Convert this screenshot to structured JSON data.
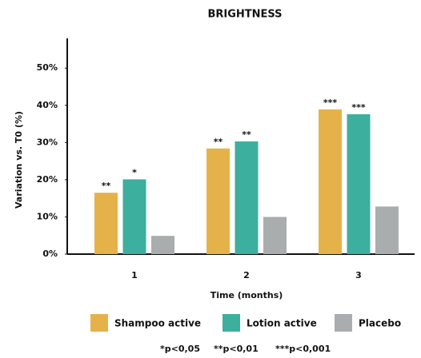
{
  "chart_data": {
    "type": "bar",
    "title": "BRIGHTNESS",
    "x_label": "Time (months)",
    "y_label": "Variation vs. T0 (%)",
    "categories": [
      "1",
      "2",
      "3"
    ],
    "series": [
      {
        "name": "Shampoo active",
        "color": "#e5b24a",
        "values": [
          16.5,
          28.4,
          38.9
        ],
        "annotations": [
          "**",
          "**",
          "***"
        ]
      },
      {
        "name": "Lotion active",
        "color": "#3daf9e",
        "values": [
          20.1,
          30.3,
          37.6
        ],
        "annotations": [
          "*",
          "**",
          "***"
        ]
      },
      {
        "name": "Placebo",
        "color": "#a9adad",
        "values": [
          4.9,
          10.0,
          12.8
        ]
      }
    ],
    "ylim": [
      0,
      58
    ],
    "yticks": [
      {
        "value": 0,
        "label": "0%"
      },
      {
        "value": 10,
        "label": "10%"
      },
      {
        "value": 20,
        "label": "20%"
      },
      {
        "value": 30,
        "label": "30%"
      },
      {
        "value": 40,
        "label": "40%"
      },
      {
        "value": 50,
        "label": "50%"
      }
    ],
    "grid": false,
    "legend": "bottom",
    "footnotes": [
      "*p<0,05",
      "**p<0,01",
      "***p<0,001"
    ]
  }
}
